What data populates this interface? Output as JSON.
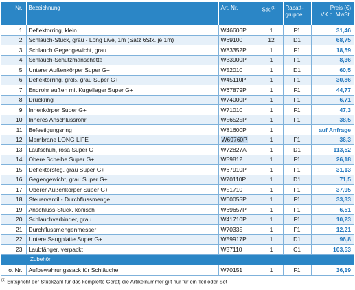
{
  "headers": {
    "nr": "Nr.",
    "desc": "Bezeichnung",
    "art": "Art. Nr.",
    "qty": "Stk.",
    "qty_sup": "(1)",
    "grp_line1": "Rabatt-",
    "grp_line2": "gruppe",
    "price_line1": "Preis (€)",
    "price_line2": "VK o. MwSt."
  },
  "rows": [
    {
      "nr": "1",
      "desc": "Deflektorring, klein",
      "art": "W46606P",
      "qty": "1",
      "grp": "F1",
      "price": "31,46"
    },
    {
      "nr": "2",
      "desc": "Schlauch-Stück, grau - Long Live, 1m (Satz 6Stk. je 1m)",
      "art": "W69100",
      "qty": "12",
      "grp": "D1",
      "price": "68,75"
    },
    {
      "nr": "3",
      "desc": "Schlauch Gegengewicht, grau",
      "art": "W83352P",
      "qty": "1",
      "grp": "F1",
      "price": "18,59"
    },
    {
      "nr": "4",
      "desc": "Schlauch-Schutzmanschette",
      "art": "W33900P",
      "qty": "1",
      "grp": "F1",
      "price": "8,36"
    },
    {
      "nr": "5",
      "desc": "Unterer Außenkörper Super G+",
      "art": "W52010",
      "qty": "1",
      "grp": "D1",
      "price": "60,5"
    },
    {
      "nr": "6",
      "desc": "Deflektorring, groß, grau Super G+",
      "art": "W45110P",
      "qty": "1",
      "grp": "F1",
      "price": "30,86"
    },
    {
      "nr": "7",
      "desc": "Endrohr außen mit Kugellager Super G+",
      "art": "W67879P",
      "qty": "1",
      "grp": "F1",
      "price": "44,77"
    },
    {
      "nr": "8",
      "desc": "Druckring",
      "art": "W74000P",
      "qty": "1",
      "grp": "F1",
      "price": "6,71"
    },
    {
      "nr": "9",
      "desc": "Innenkörper Super G+",
      "art": "W71010",
      "qty": "1",
      "grp": "F1",
      "price": "47,3"
    },
    {
      "nr": "10",
      "desc": "Inneres Anschlussrohr",
      "art": "W56525P",
      "qty": "1",
      "grp": "F1",
      "price": "38,5"
    },
    {
      "nr": "11",
      "desc": "Befestigungsring",
      "art": "W81600P",
      "qty": "1",
      "grp": "",
      "price": "auf Anfrage"
    },
    {
      "nr": "12",
      "desc": "Membrane LONG LIFE",
      "art": "W69760P",
      "qty": "1",
      "grp": "F1",
      "price": "36,3"
    },
    {
      "nr": "13",
      "desc": "Laufschuh, rosa Super G+",
      "art": "W72827A",
      "qty": "1",
      "grp": "D1",
      "price": "113,52"
    },
    {
      "nr": "14",
      "desc": "Obere Scheibe Super G+",
      "art": "W59812",
      "qty": "1",
      "grp": "F1",
      "price": "26,18"
    },
    {
      "nr": "15",
      "desc": "Deflektorsteg, grau Super G+",
      "art": "W67910P",
      "qty": "1",
      "grp": "F1",
      "price": "31,13"
    },
    {
      "nr": "16",
      "desc": "Gegengewicht, grau Super G+",
      "art": "W70110P",
      "qty": "1",
      "grp": "D1",
      "price": "71,5"
    },
    {
      "nr": "17",
      "desc": "Oberer Außenkörper Super G+",
      "art": "W51710",
      "qty": "1",
      "grp": "F1",
      "price": "37,95"
    },
    {
      "nr": "18",
      "desc": "Steuerventil - Durchflussmenge",
      "art": "W60055P",
      "qty": "1",
      "grp": "F1",
      "price": "33,33"
    },
    {
      "nr": "19",
      "desc": "Anschluss-Stück, konisch",
      "art": "W69657P",
      "qty": "1",
      "grp": "F1",
      "price": "6,51"
    },
    {
      "nr": "20",
      "desc": "Schlauchverbinder, grau",
      "art": "W41710P",
      "qty": "1",
      "grp": "F1",
      "price": "10,23"
    },
    {
      "nr": "21",
      "desc": "Durchflussmengenmesser",
      "art": "W70335",
      "qty": "1",
      "grp": "F1",
      "price": "12,21"
    },
    {
      "nr": "22",
      "desc": "Untere Saugplatte Super G+",
      "art": "W59917P",
      "qty": "1",
      "grp": "D1",
      "price": "96,8"
    },
    {
      "nr": "23",
      "desc": "Laubfänger, verpackt",
      "art": "W37110",
      "qty": "1",
      "grp": "C1",
      "price": "103,53"
    }
  ],
  "highlighted_art": "W69760P",
  "accessories": {
    "header": "Zubehör",
    "nr": "o. Nr.",
    "desc": "Aufbewahrungssack für Schläuche",
    "art": "W70151",
    "qty": "1",
    "grp": "F1",
    "price": "36,19"
  },
  "footnote": {
    "marker": "(1)",
    "text": " Entspricht der Stückzahl für das komplette Gerät; die Artikelnummer gilt nur für ein Teil oder Set"
  },
  "colors": {
    "header_bg": "#2b86c6",
    "price_text": "#2176bd",
    "row_alt_bg": "#e6f0f9",
    "grid_line": "#7fb2db"
  }
}
